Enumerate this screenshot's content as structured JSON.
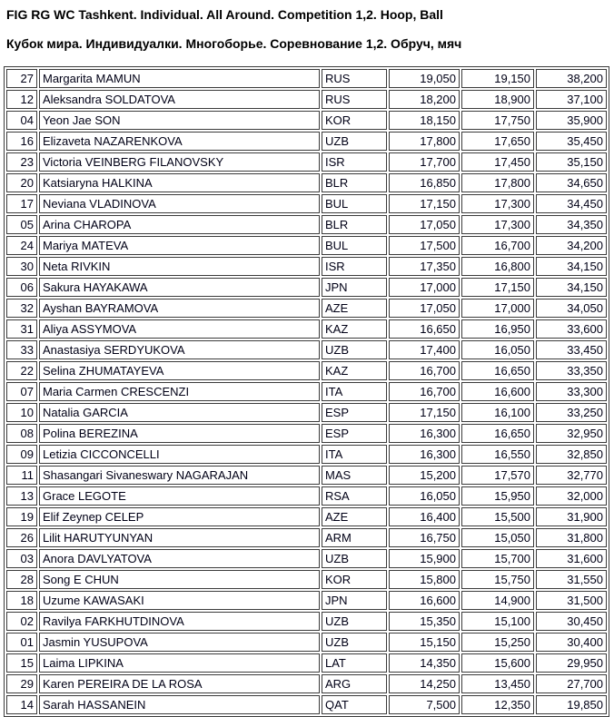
{
  "header": {
    "title_en": "FIG RG WC Tashkent. Individual. All Around. Competition 1,2. Hoop, Ball",
    "title_ru": "Кубок мира. Индивидуалки. Многоборье. Соревнование 1,2. Обруч, мяч"
  },
  "colors": {
    "border": "#3b3b3b",
    "text": "#000016",
    "background": "#ffffff"
  },
  "table": {
    "columns": [
      "bib",
      "name",
      "nation",
      "score1",
      "score2",
      "total"
    ],
    "rows": [
      {
        "bib": "27",
        "name": "Margarita MAMUN",
        "nation": "RUS",
        "score1": "19,050",
        "score2": "19,150",
        "total": "38,200"
      },
      {
        "bib": "12",
        "name": "Aleksandra SOLDATOVA",
        "nation": "RUS",
        "score1": "18,200",
        "score2": "18,900",
        "total": "37,100"
      },
      {
        "bib": "04",
        "name": "Yeon Jae SON",
        "nation": "KOR",
        "score1": "18,150",
        "score2": "17,750",
        "total": "35,900"
      },
      {
        "bib": "16",
        "name": "Elizaveta NAZARENKOVA",
        "nation": "UZB",
        "score1": "17,800",
        "score2": "17,650",
        "total": "35,450"
      },
      {
        "bib": "23",
        "name": "Victoria VEINBERG FILANOVSKY",
        "nation": "ISR",
        "score1": "17,700",
        "score2": "17,450",
        "total": "35,150"
      },
      {
        "bib": "20",
        "name": "Katsiaryna HALKINA",
        "nation": "BLR",
        "score1": "16,850",
        "score2": "17,800",
        "total": "34,650"
      },
      {
        "bib": "17",
        "name": "Neviana VLADINOVA",
        "nation": "BUL",
        "score1": "17,150",
        "score2": "17,300",
        "total": "34,450"
      },
      {
        "bib": "05",
        "name": "Arina CHAROPA",
        "nation": "BLR",
        "score1": "17,050",
        "score2": "17,300",
        "total": "34,350"
      },
      {
        "bib": "24",
        "name": "Mariya MATEVA",
        "nation": "BUL",
        "score1": "17,500",
        "score2": "16,700",
        "total": "34,200"
      },
      {
        "bib": "30",
        "name": "Neta RIVKIN",
        "nation": "ISR",
        "score1": "17,350",
        "score2": "16,800",
        "total": "34,150"
      },
      {
        "bib": "06",
        "name": "Sakura HAYAKAWA",
        "nation": "JPN",
        "score1": "17,000",
        "score2": "17,150",
        "total": "34,150"
      },
      {
        "bib": "32",
        "name": "Ayshan BAYRAMOVA",
        "nation": "AZE",
        "score1": "17,050",
        "score2": "17,000",
        "total": "34,050"
      },
      {
        "bib": "31",
        "name": "Aliya ASSYMOVA",
        "nation": "KAZ",
        "score1": "16,650",
        "score2": "16,950",
        "total": "33,600"
      },
      {
        "bib": "33",
        "name": "Anastasiya SERDYUKOVA",
        "nation": "UZB",
        "score1": "17,400",
        "score2": "16,050",
        "total": "33,450"
      },
      {
        "bib": "22",
        "name": "Selina ZHUMATAYEVA",
        "nation": "KAZ",
        "score1": "16,700",
        "score2": "16,650",
        "total": "33,350"
      },
      {
        "bib": "07",
        "name": "Maria Carmen CRESCENZI",
        "nation": "ITA",
        "score1": "16,700",
        "score2": "16,600",
        "total": "33,300"
      },
      {
        "bib": "10",
        "name": "Natalia GARCIA",
        "nation": "ESP",
        "score1": "17,150",
        "score2": "16,100",
        "total": "33,250"
      },
      {
        "bib": "08",
        "name": "Polina BEREZINA",
        "nation": "ESP",
        "score1": "16,300",
        "score2": "16,650",
        "total": "32,950"
      },
      {
        "bib": "09",
        "name": "Letizia CICCONCELLI",
        "nation": "ITA",
        "score1": "16,300",
        "score2": "16,550",
        "total": "32,850"
      },
      {
        "bib": "11",
        "name": "Shasangari Sivaneswary NAGARAJAN",
        "nation": "MAS",
        "score1": "15,200",
        "score2": "17,570",
        "total": "32,770"
      },
      {
        "bib": "13",
        "name": "Grace LEGOTE",
        "nation": "RSA",
        "score1": "16,050",
        "score2": "15,950",
        "total": "32,000"
      },
      {
        "bib": "19",
        "name": "Elif Zeynep CELEP",
        "nation": "AZE",
        "score1": "16,400",
        "score2": "15,500",
        "total": "31,900"
      },
      {
        "bib": "26",
        "name": "Lilit HARUTYUNYAN",
        "nation": "ARM",
        "score1": "16,750",
        "score2": "15,050",
        "total": "31,800"
      },
      {
        "bib": "03",
        "name": "Anora DAVLYATOVA",
        "nation": "UZB",
        "score1": "15,900",
        "score2": "15,700",
        "total": "31,600"
      },
      {
        "bib": "28",
        "name": "Song E CHUN",
        "nation": "KOR",
        "score1": "15,800",
        "score2": "15,750",
        "total": "31,550"
      },
      {
        "bib": "18",
        "name": "Uzume KAWASAKI",
        "nation": "JPN",
        "score1": "16,600",
        "score2": "14,900",
        "total": "31,500"
      },
      {
        "bib": "02",
        "name": "Ravilya FARKHUTDINOVA",
        "nation": "UZB",
        "score1": "15,350",
        "score2": "15,100",
        "total": "30,450"
      },
      {
        "bib": "01",
        "name": "Jasmin YUSUPOVA",
        "nation": "UZB",
        "score1": "15,150",
        "score2": "15,250",
        "total": "30,400"
      },
      {
        "bib": "15",
        "name": "Laima LIPKINA",
        "nation": "LAT",
        "score1": "14,350",
        "score2": "15,600",
        "total": "29,950"
      },
      {
        "bib": "29",
        "name": "Karen PEREIRA DE LA ROSA",
        "nation": "ARG",
        "score1": "14,250",
        "score2": "13,450",
        "total": "27,700"
      },
      {
        "bib": "14",
        "name": "Sarah HASSANEIN",
        "nation": "QAT",
        "score1": "7,500",
        "score2": "12,350",
        "total": "19,850"
      }
    ]
  }
}
